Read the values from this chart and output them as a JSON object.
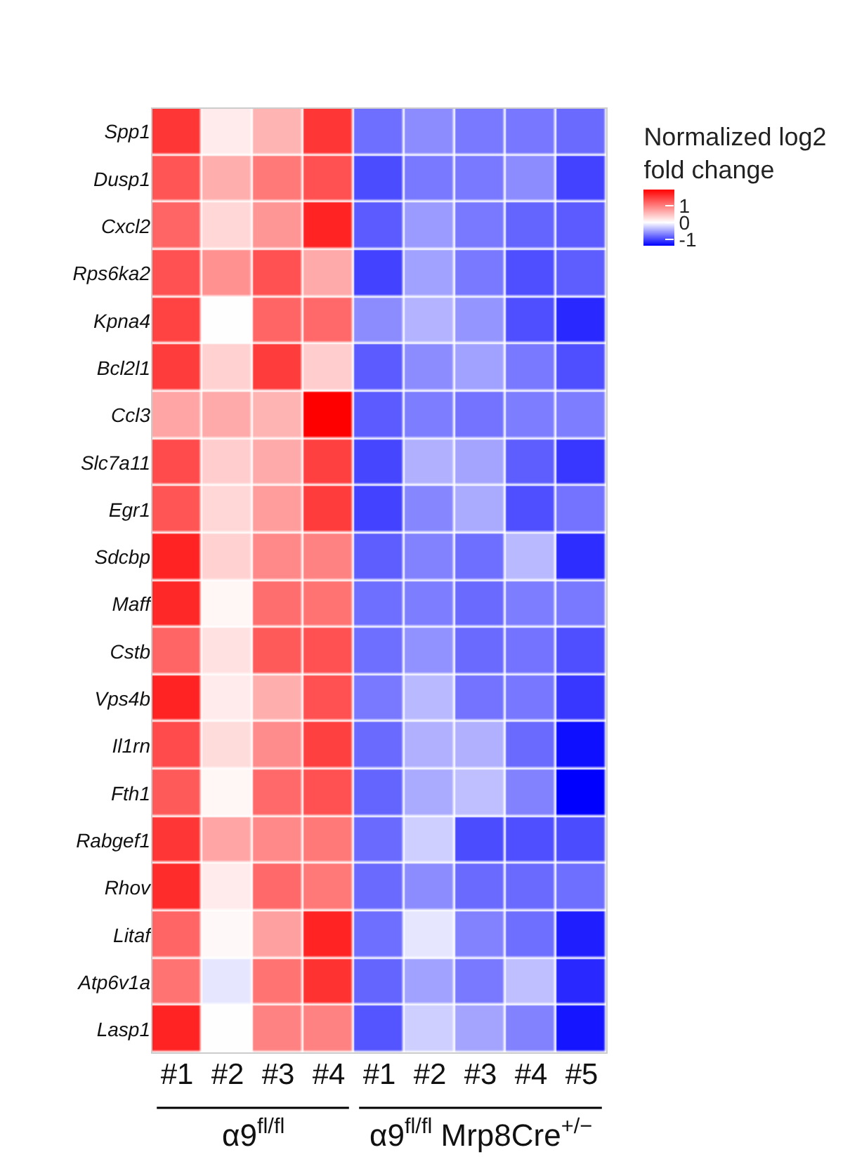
{
  "chart_data": {
    "type": "heatmap",
    "clabel": "Normalized log2\nfold change",
    "categories": [
      "#1",
      "#2",
      "#3",
      "#4",
      "#1",
      "#2",
      "#3",
      "#4",
      "#5"
    ],
    "y_categories": [
      "Spp1",
      "Dusp1",
      "Cxcl2",
      "Rps6ka2",
      "Kpna4",
      "Bcl2l1",
      "Ccl3",
      "Slc7a11",
      "Egr1",
      "Sdcbp",
      "Maff",
      "Cstb",
      "Vps4b",
      "Il1rn",
      "Fth1",
      "Rabgef1",
      "Rhov",
      "Litaf",
      "Atp6v1a",
      "Lasp1"
    ],
    "cells": [
      [
        1.5,
        0.15,
        0.56,
        1.5,
        -0.77,
        -0.61,
        -0.71,
        -0.72,
        -0.79
      ],
      [
        1.27,
        0.6,
        1.0,
        1.3,
        -0.95,
        -0.71,
        -0.71,
        -0.61,
        -1.0
      ],
      [
        1.15,
        0.3,
        0.78,
        1.64,
        -0.87,
        -0.53,
        -0.71,
        -0.82,
        -0.87
      ],
      [
        1.3,
        0.82,
        1.3,
        0.63,
        -1.0,
        -0.5,
        -0.71,
        -0.93,
        -0.85
      ],
      [
        1.4,
        0.01,
        1.15,
        1.12,
        -0.61,
        -0.4,
        -0.56,
        -0.93,
        -1.14
      ],
      [
        1.45,
        0.34,
        1.45,
        0.37,
        -0.87,
        -0.61,
        -0.5,
        -0.71,
        -0.93
      ],
      [
        0.67,
        0.63,
        0.56,
        1.9,
        -0.87,
        -0.69,
        -0.74,
        -0.69,
        -0.69
      ],
      [
        1.34,
        0.37,
        0.63,
        1.42,
        -0.98,
        -0.42,
        -0.48,
        -0.85,
        -1.06
      ],
      [
        1.27,
        0.3,
        0.74,
        1.45,
        -1.0,
        -0.64,
        -0.45,
        -0.93,
        -0.74
      ],
      [
        1.64,
        0.34,
        0.89,
        0.93,
        -0.85,
        -0.66,
        -0.77,
        -0.37,
        -1.11
      ],
      [
        1.6,
        0.07,
        1.08,
        1.04,
        -0.77,
        -0.69,
        -0.79,
        -0.69,
        -0.71
      ],
      [
        1.15,
        0.22,
        1.23,
        1.3,
        -0.77,
        -0.58,
        -0.79,
        -0.74,
        -0.93
      ],
      [
        1.64,
        0.15,
        0.6,
        1.3,
        -0.71,
        -0.37,
        -0.74,
        -0.72,
        -1.06
      ],
      [
        1.34,
        0.26,
        0.86,
        1.42,
        -0.79,
        -0.42,
        -0.42,
        -0.79,
        -1.27
      ],
      [
        1.23,
        0.07,
        1.12,
        1.3,
        -0.82,
        -0.45,
        -0.34,
        -0.66,
        -1.35
      ],
      [
        1.5,
        0.67,
        0.89,
        1.0,
        -0.79,
        -0.26,
        -0.95,
        -0.93,
        -0.95
      ],
      [
        1.57,
        0.15,
        1.12,
        1.0,
        -0.79,
        -0.61,
        -0.79,
        -0.79,
        -0.77
      ],
      [
        1.15,
        0.05,
        0.71,
        1.64,
        -0.77,
        -0.13,
        -0.66,
        -0.77,
        -1.19
      ],
      [
        1.04,
        -0.13,
        1.04,
        1.53,
        -0.82,
        -0.5,
        -0.71,
        -0.34,
        -1.14
      ],
      [
        1.64,
        0.01,
        0.93,
        0.93,
        -0.9,
        -0.26,
        -0.48,
        -0.66,
        -1.24
      ]
    ],
    "clim": [
      -1.35,
      1.9
    ],
    "cticks": [
      -1,
      0,
      1
    ],
    "annotations": [
      "α9$^{fl/fl}$",
      "α9$^{fl/fl}$ Mrp8Cre$^{+/−}$"
    ]
  }
}
